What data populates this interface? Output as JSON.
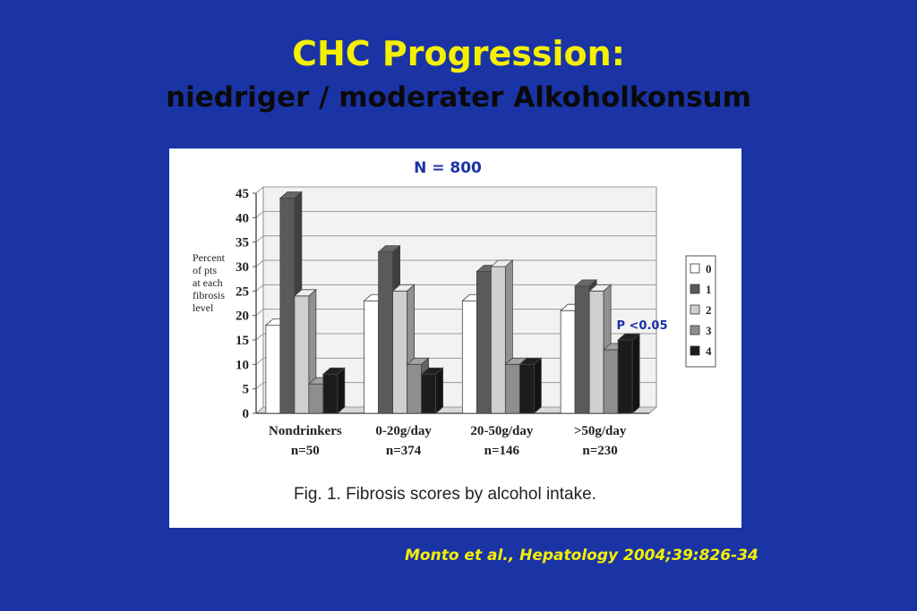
{
  "slide": {
    "title": "CHC Progression:",
    "subtitle": "niedriger / moderater Alkoholkonsum",
    "citation": "Monto et  al., Hepatology 2004;39:826-34"
  },
  "colors": {
    "background": "#1a34a6",
    "title": "#f5f000",
    "series": [
      "#ffffff",
      "#5a5a5a",
      "#cfcfcf",
      "#8e8e8e",
      "#1c1c1c"
    ]
  },
  "chart_data": {
    "type": "bar",
    "annotation_n": "N = 800",
    "annotation_p": "P <0.05",
    "ylabel_lines": [
      "Percent",
      "of pts",
      "at each",
      "fibrosis",
      "level"
    ],
    "ylim": [
      0,
      45
    ],
    "yticks": [
      "0",
      "5",
      "10",
      "15",
      "20",
      "25",
      "30",
      "35",
      "40",
      "45"
    ],
    "categories": [
      {
        "name": "Nondrinkers",
        "n": "n=50"
      },
      {
        "name": "0-20g/day",
        "n": "n=374"
      },
      {
        "name": "20-50g/day",
        "n": "n=146"
      },
      {
        "name": ">50g/day",
        "n": "n=230"
      }
    ],
    "series": [
      {
        "name": "0",
        "values": [
          18,
          23,
          23,
          21
        ]
      },
      {
        "name": "1",
        "values": [
          44,
          33,
          29,
          26
        ]
      },
      {
        "name": "2",
        "values": [
          24,
          25,
          30,
          25
        ]
      },
      {
        "name": "3",
        "values": [
          6,
          10,
          10,
          13
        ]
      },
      {
        "name": "4",
        "values": [
          8,
          8,
          10,
          15
        ]
      }
    ],
    "caption": "Fig. 1.  Fibrosis scores by alcohol intake.",
    "legend_position": "right",
    "grid": true
  }
}
